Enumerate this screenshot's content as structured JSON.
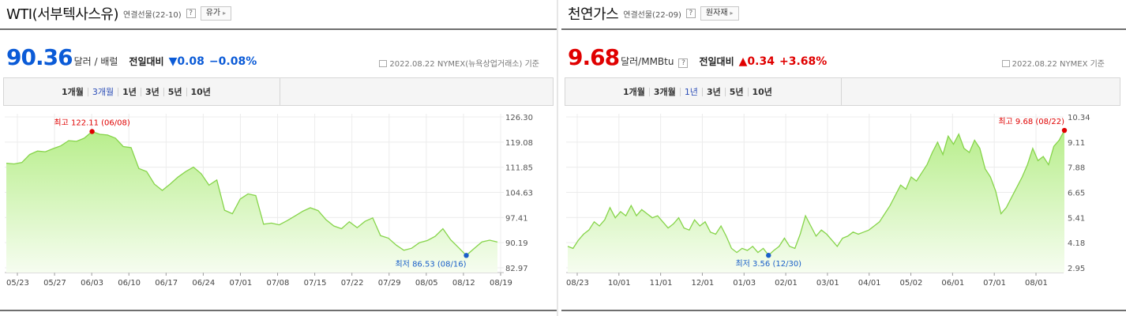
{
  "wti": {
    "title": "WTI(서부텍사스유)",
    "subtitle": "연결선물(22-10)",
    "help": "?",
    "related_button": "유가",
    "price": "90.36",
    "unit": "달러 / 배럴",
    "compare_label": "전일대비",
    "change_arrow": "▼",
    "change": "0.08",
    "change_pct": "−0.08%",
    "date_note": "2022.08.22  NYMEX(뉴욕상업거래소) 기준",
    "tabs": [
      "1개월",
      "3개월",
      "1년",
      "3년",
      "5년",
      "10년"
    ],
    "active_tab": "3개월",
    "colors": {
      "line": "#86d44a",
      "fill_top": "#b8ee8c",
      "fill_bottom": "#f6fdf0",
      "high": "#e00000",
      "low": "#1a5fc9"
    }
  },
  "gas": {
    "title": "천연가스",
    "subtitle": "연결선물(22-09)",
    "help": "?",
    "related_button": "원자재",
    "price": "9.68",
    "unit": "달러/MMBtu",
    "compare_label": "전일대비",
    "change_arrow": "▲",
    "change": "0.34",
    "change_pct": "+3.68%",
    "date_note": "2022.08.22  NYMEX 기준",
    "tabs": [
      "1개월",
      "3개월",
      "1년",
      "3년",
      "5년",
      "10년"
    ],
    "active_tab": "1년",
    "colors": {
      "line": "#86d44a",
      "fill_top": "#b8ee8c",
      "fill_bottom": "#f6fdf0",
      "high": "#e00000",
      "low": "#1a5fc9"
    }
  },
  "chart_data": [
    {
      "type": "area",
      "title": "WTI(서부텍사스유)",
      "ylim": [
        82.97,
        126.3
      ],
      "yticks": [
        "126.30",
        "119.08",
        "111.85",
        "104.63",
        "97.41",
        "90.19",
        "82.97"
      ],
      "xticks": [
        "05/23",
        "05/27",
        "06/03",
        "06/10",
        "06/17",
        "06/24",
        "07/01",
        "07/08",
        "07/15",
        "07/22",
        "07/29",
        "08/05",
        "08/12",
        "08/19"
      ],
      "grid": true,
      "values": [
        113.0,
        112.8,
        113.2,
        115.5,
        116.5,
        116.3,
        117.2,
        118.0,
        119.5,
        119.3,
        120.2,
        122.11,
        121.3,
        121.1,
        120.2,
        117.8,
        117.5,
        111.5,
        110.6,
        107.0,
        105.2,
        107.0,
        109.0,
        110.6,
        111.9,
        110.0,
        106.7,
        108.2,
        99.5,
        98.5,
        102.7,
        104.2,
        103.7,
        95.5,
        95.8,
        95.3,
        96.5,
        97.8,
        99.2,
        100.2,
        99.4,
        96.8,
        95.0,
        94.2,
        96.2,
        94.5,
        96.3,
        97.3,
        92.2,
        91.5,
        89.5,
        88.0,
        88.6,
        90.2,
        90.8,
        92.0,
        94.2,
        91.0,
        88.8,
        86.53,
        88.5,
        90.4,
        90.9,
        90.36
      ],
      "high": {
        "label": "최고 122.11 (06/08)",
        "value": 122.11,
        "date": "06/08"
      },
      "low": {
        "label": "최저 86.53 (08/16)",
        "value": 86.53,
        "date": "08/16"
      }
    },
    {
      "type": "area",
      "title": "천연가스",
      "ylim": [
        2.95,
        10.34
      ],
      "yticks": [
        "10.34",
        "9.11",
        "7.88",
        "6.65",
        "5.41",
        "4.18",
        "2.95"
      ],
      "xticks": [
        "08/23",
        "10/01",
        "11/01",
        "12/01",
        "01/03",
        "02/01",
        "03/01",
        "04/01",
        "05/02",
        "06/01",
        "07/01",
        "08/01"
      ],
      "grid": true,
      "values": [
        4.0,
        3.9,
        4.3,
        4.6,
        4.8,
        5.2,
        5.0,
        5.3,
        5.9,
        5.4,
        5.7,
        5.5,
        6.0,
        5.5,
        5.8,
        5.6,
        5.4,
        5.5,
        5.2,
        4.9,
        5.1,
        5.4,
        4.9,
        4.8,
        5.3,
        5.0,
        5.2,
        4.7,
        4.6,
        5.0,
        4.5,
        3.9,
        3.7,
        3.9,
        3.8,
        4.0,
        3.7,
        3.9,
        3.56,
        3.8,
        4.0,
        4.4,
        4.0,
        3.9,
        4.6,
        5.5,
        5.0,
        4.5,
        4.8,
        4.6,
        4.3,
        4.0,
        4.4,
        4.5,
        4.7,
        4.6,
        4.7,
        4.8,
        5.0,
        5.2,
        5.6,
        6.0,
        6.5,
        7.0,
        6.8,
        7.4,
        7.2,
        7.6,
        8.0,
        8.6,
        9.1,
        8.5,
        9.4,
        9.0,
        9.5,
        8.8,
        8.6,
        9.2,
        8.8,
        7.8,
        7.4,
        6.7,
        5.6,
        5.9,
        6.4,
        6.9,
        7.4,
        8.0,
        8.8,
        8.2,
        8.4,
        8.0,
        8.9,
        9.2,
        9.68
      ],
      "high": {
        "label": "최고 9.68 (08/22)",
        "value": 9.68,
        "date": "08/22"
      },
      "low": {
        "label": "최저 3.56 (12/30)",
        "value": 3.56,
        "date": "12/30"
      }
    }
  ]
}
